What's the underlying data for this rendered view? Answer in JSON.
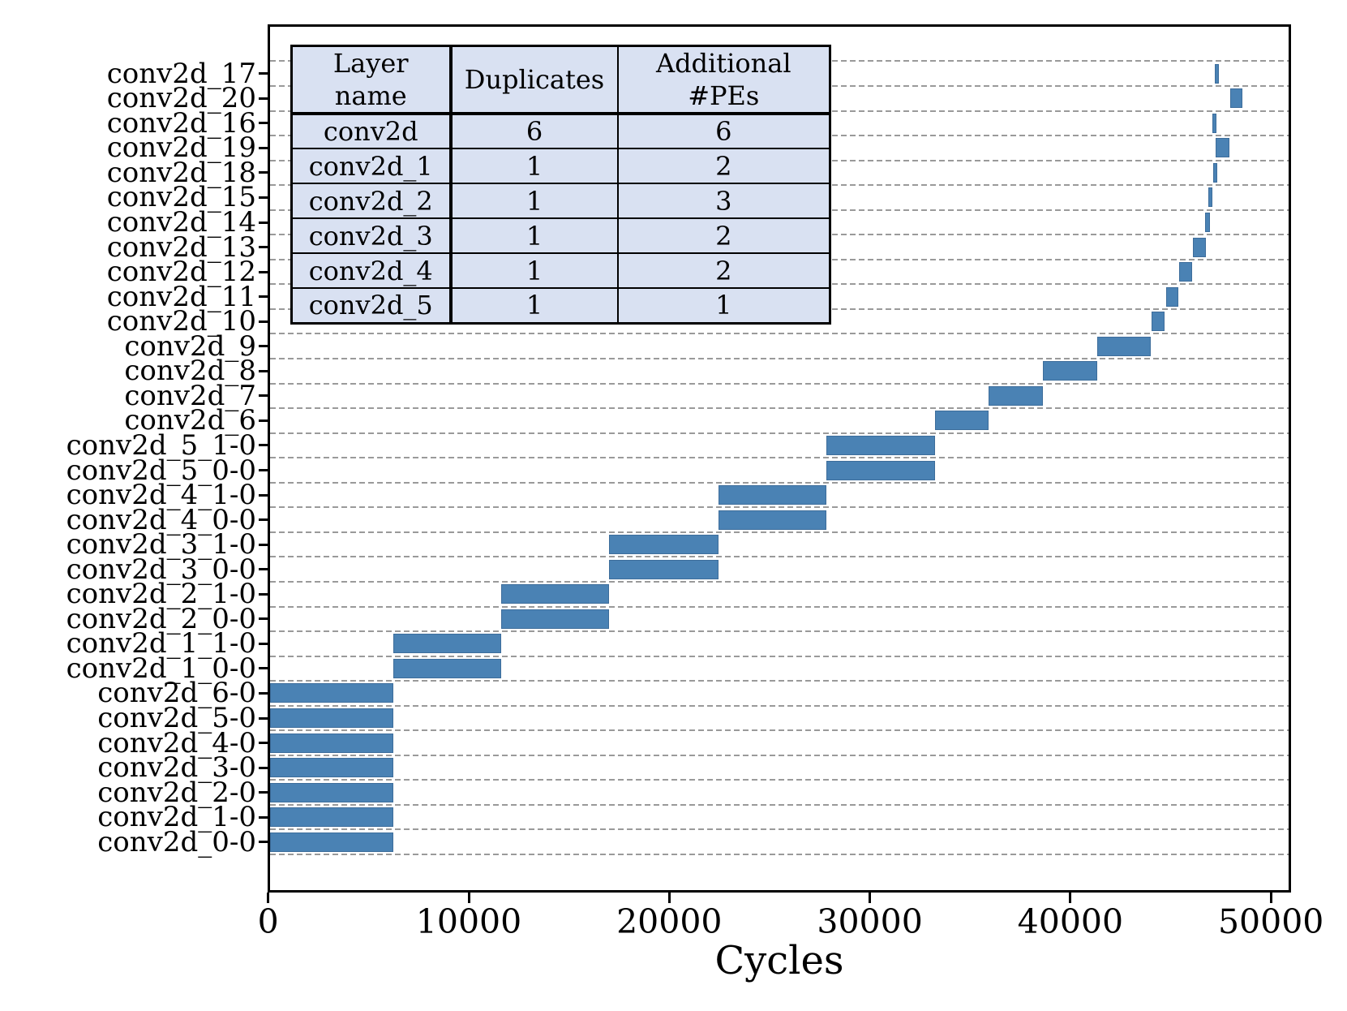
{
  "figure": {
    "bar_color": "#4a82b4",
    "grid_color": "#9a9a9a",
    "table_bg": "#d9e1f2",
    "x_axis_title": "Cycles",
    "x_tick_labels": [
      "0",
      "10000",
      "20000",
      "30000",
      "40000",
      "50000"
    ],
    "table": {
      "headers": [
        "Layer\nname",
        "Duplicates",
        "Additional\n#PEs"
      ],
      "rows": [
        [
          "conv2d",
          "6",
          "6"
        ],
        [
          "conv2d_1",
          "1",
          "2"
        ],
        [
          "conv2d_2",
          "1",
          "3"
        ],
        [
          "conv2d_3",
          "1",
          "2"
        ],
        [
          "conv2d_4",
          "1",
          "2"
        ],
        [
          "conv2d_5",
          "1",
          "1"
        ]
      ]
    }
  },
  "chart_data": {
    "type": "bar",
    "subtype": "gantt-horizontal",
    "title": "",
    "xlabel": "Cycles",
    "ylabel": "",
    "xlim": [
      0,
      50950
    ],
    "x_ticks": [
      0,
      10000,
      20000,
      30000,
      40000,
      50000
    ],
    "grid": "dashed horizontal lines at every row boundary",
    "legend_position": "none",
    "rows_top_to_bottom": [
      {
        "label": "conv2d_17",
        "start": 47200,
        "end": 47400
      },
      {
        "label": "conv2d_20",
        "start": 47970,
        "end": 48580
      },
      {
        "label": "conv2d_16",
        "start": 47080,
        "end": 47280
      },
      {
        "label": "conv2d_19",
        "start": 47240,
        "end": 47930
      },
      {
        "label": "conv2d_18",
        "start": 47120,
        "end": 47320
      },
      {
        "label": "conv2d_15",
        "start": 46880,
        "end": 47080
      },
      {
        "label": "conv2d_14",
        "start": 46720,
        "end": 46960
      },
      {
        "label": "conv2d_13",
        "start": 46110,
        "end": 46760
      },
      {
        "label": "conv2d_12",
        "start": 45430,
        "end": 46070
      },
      {
        "label": "conv2d_11",
        "start": 44760,
        "end": 45390
      },
      {
        "label": "conv2d_10",
        "start": 44050,
        "end": 44700
      },
      {
        "label": "conv2d_9",
        "start": 41330,
        "end": 44020
      },
      {
        "label": "conv2d_8",
        "start": 38630,
        "end": 41330
      },
      {
        "label": "conv2d_7",
        "start": 35940,
        "end": 38630
      },
      {
        "label": "conv2d_6",
        "start": 33240,
        "end": 35940
      },
      {
        "label": "conv2d_5_1-0",
        "start": 27850,
        "end": 33240
      },
      {
        "label": "conv2d_5_0-0",
        "start": 27850,
        "end": 33240
      },
      {
        "label": "conv2d_4_1-0",
        "start": 22460,
        "end": 27850
      },
      {
        "label": "conv2d_4_0-0",
        "start": 22460,
        "end": 27850
      },
      {
        "label": "conv2d_3_1-0",
        "start": 17000,
        "end": 22460
      },
      {
        "label": "conv2d_3_0-0",
        "start": 17000,
        "end": 22460
      },
      {
        "label": "conv2d_2_1-0",
        "start": 11630,
        "end": 17000
      },
      {
        "label": "conv2d_2_0-0",
        "start": 11630,
        "end": 17000
      },
      {
        "label": "conv2d_1_1-0",
        "start": 6240,
        "end": 11630
      },
      {
        "label": "conv2d_1_0-0",
        "start": 6240,
        "end": 11630
      },
      {
        "label": "conv2d_6-0",
        "start": 0,
        "end": 6240
      },
      {
        "label": "conv2d_5-0",
        "start": 0,
        "end": 6240
      },
      {
        "label": "conv2d_4-0",
        "start": 0,
        "end": 6240
      },
      {
        "label": "conv2d_3-0",
        "start": 0,
        "end": 6240
      },
      {
        "label": "conv2d_2-0",
        "start": 0,
        "end": 6240
      },
      {
        "label": "conv2d_1-0",
        "start": 0,
        "end": 6240
      },
      {
        "label": "conv2d_0-0",
        "start": 0,
        "end": 6240
      }
    ]
  }
}
